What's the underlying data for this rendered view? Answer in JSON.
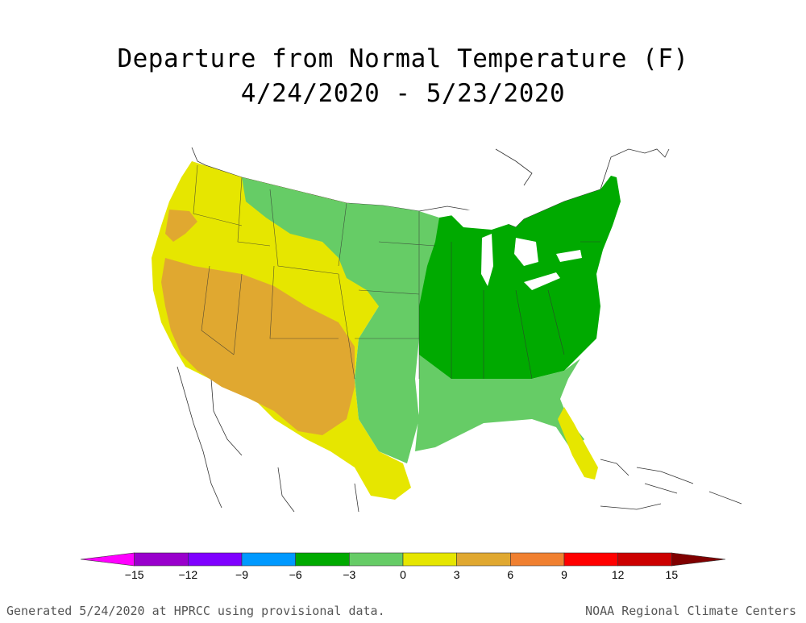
{
  "title": {
    "line1": "Departure from Normal Temperature (F)",
    "line2": "4/24/2020 - 5/23/2020"
  },
  "legend": {
    "ticks": [
      "-15",
      "-12",
      "-9",
      "-6",
      "-3",
      "0",
      "3",
      "6",
      "9",
      "12",
      "15"
    ],
    "colors": [
      "#ff00ff",
      "#9900cc",
      "#7f00ff",
      "#0099ff",
      "#00aa00",
      "#66cc66",
      "#e6e600",
      "#e0a830",
      "#f08030",
      "#ff0000",
      "#cc0000",
      "#800000"
    ]
  },
  "regions": {
    "pacific": "#e0a830",
    "west": "#e6e600",
    "northern-plains": "#66cc66",
    "southern-plains": "#e6e600",
    "southwest": "#e0a830",
    "midwest-east": "#00aa00",
    "southeast": "#66cc66",
    "florida": "#e6e600",
    "great-lakes": "#ffffff"
  },
  "footer": {
    "left": "Generated 5/24/2020 at HPRCC using provisional data.",
    "right": "NOAA Regional Climate Centers"
  }
}
